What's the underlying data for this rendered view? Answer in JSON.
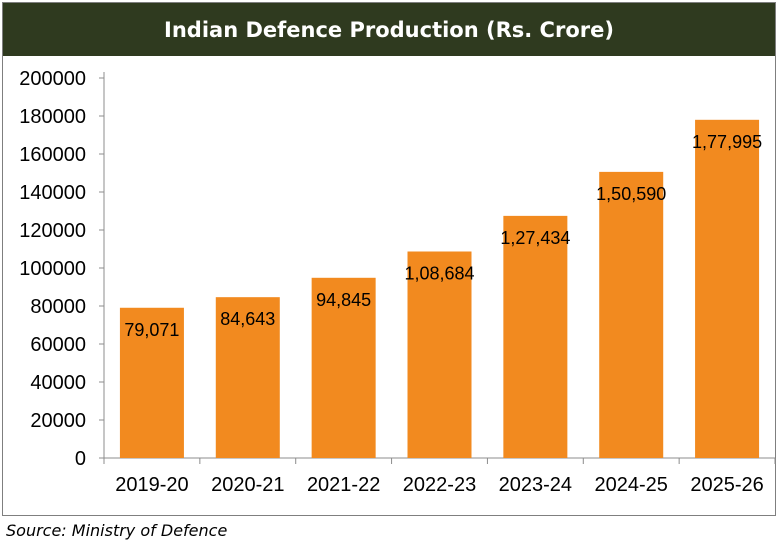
{
  "chart_data": {
    "type": "bar",
    "title": "Indian Defence Production (Rs. Crore)",
    "categories": [
      "2019-20",
      "2020-21",
      "2021-22",
      "2022-23",
      "2023-24",
      "2024-25",
      "2025-26"
    ],
    "values": [
      79071,
      84643,
      94845,
      108684,
      127434,
      150590,
      177995
    ],
    "data_labels": [
      "79,071",
      "84,643",
      "94,845",
      "1,08,684",
      "1,27,434",
      "1,50,590",
      "1,77,995"
    ],
    "ylim": [
      0,
      200000
    ],
    "yticks": [
      0,
      20000,
      40000,
      60000,
      80000,
      100000,
      120000,
      140000,
      160000,
      180000,
      200000
    ],
    "xlabel": "",
    "ylabel": "",
    "bar_color": "#f28a1f",
    "grid": false
  },
  "source": "Source: Ministry of Defence",
  "colors": {
    "title_bg": "#2f3a1f",
    "title_text": "#ffffff"
  }
}
